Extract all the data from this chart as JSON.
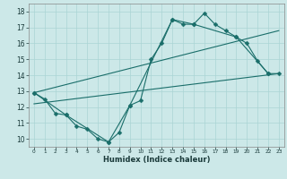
{
  "xlabel": "Humidex (Indice chaleur)",
  "bg_color": "#cce8e8",
  "grid_color": "#aad4d4",
  "line_color": "#1a6e6a",
  "xlim": [
    -0.5,
    23.5
  ],
  "ylim": [
    9.5,
    18.5
  ],
  "xticks": [
    0,
    1,
    2,
    3,
    4,
    5,
    6,
    7,
    8,
    9,
    10,
    11,
    12,
    13,
    14,
    15,
    16,
    17,
    18,
    19,
    20,
    21,
    22,
    23
  ],
  "yticks": [
    10,
    11,
    12,
    13,
    14,
    15,
    16,
    17,
    18
  ],
  "line1_x": [
    0,
    1,
    2,
    3,
    4,
    5,
    6,
    7,
    8,
    9,
    10,
    11,
    12,
    13,
    14,
    15,
    16,
    17,
    18,
    19,
    20,
    21,
    22
  ],
  "line1_y": [
    12.9,
    12.5,
    11.6,
    11.5,
    10.8,
    10.6,
    10.0,
    9.8,
    10.4,
    12.1,
    12.4,
    15.0,
    16.0,
    17.5,
    17.2,
    17.2,
    17.9,
    17.2,
    16.8,
    16.4,
    16.0,
    14.9,
    14.1
  ],
  "line2_x": [
    0,
    3,
    7,
    9,
    13,
    15,
    19,
    22,
    23
  ],
  "line2_y": [
    12.9,
    11.5,
    9.8,
    12.1,
    17.5,
    17.2,
    16.4,
    14.1,
    14.1
  ],
  "line3_x": [
    0,
    23
  ],
  "line3_y": [
    12.2,
    14.1
  ],
  "line4_x": [
    0,
    23
  ],
  "line4_y": [
    12.9,
    16.8
  ]
}
